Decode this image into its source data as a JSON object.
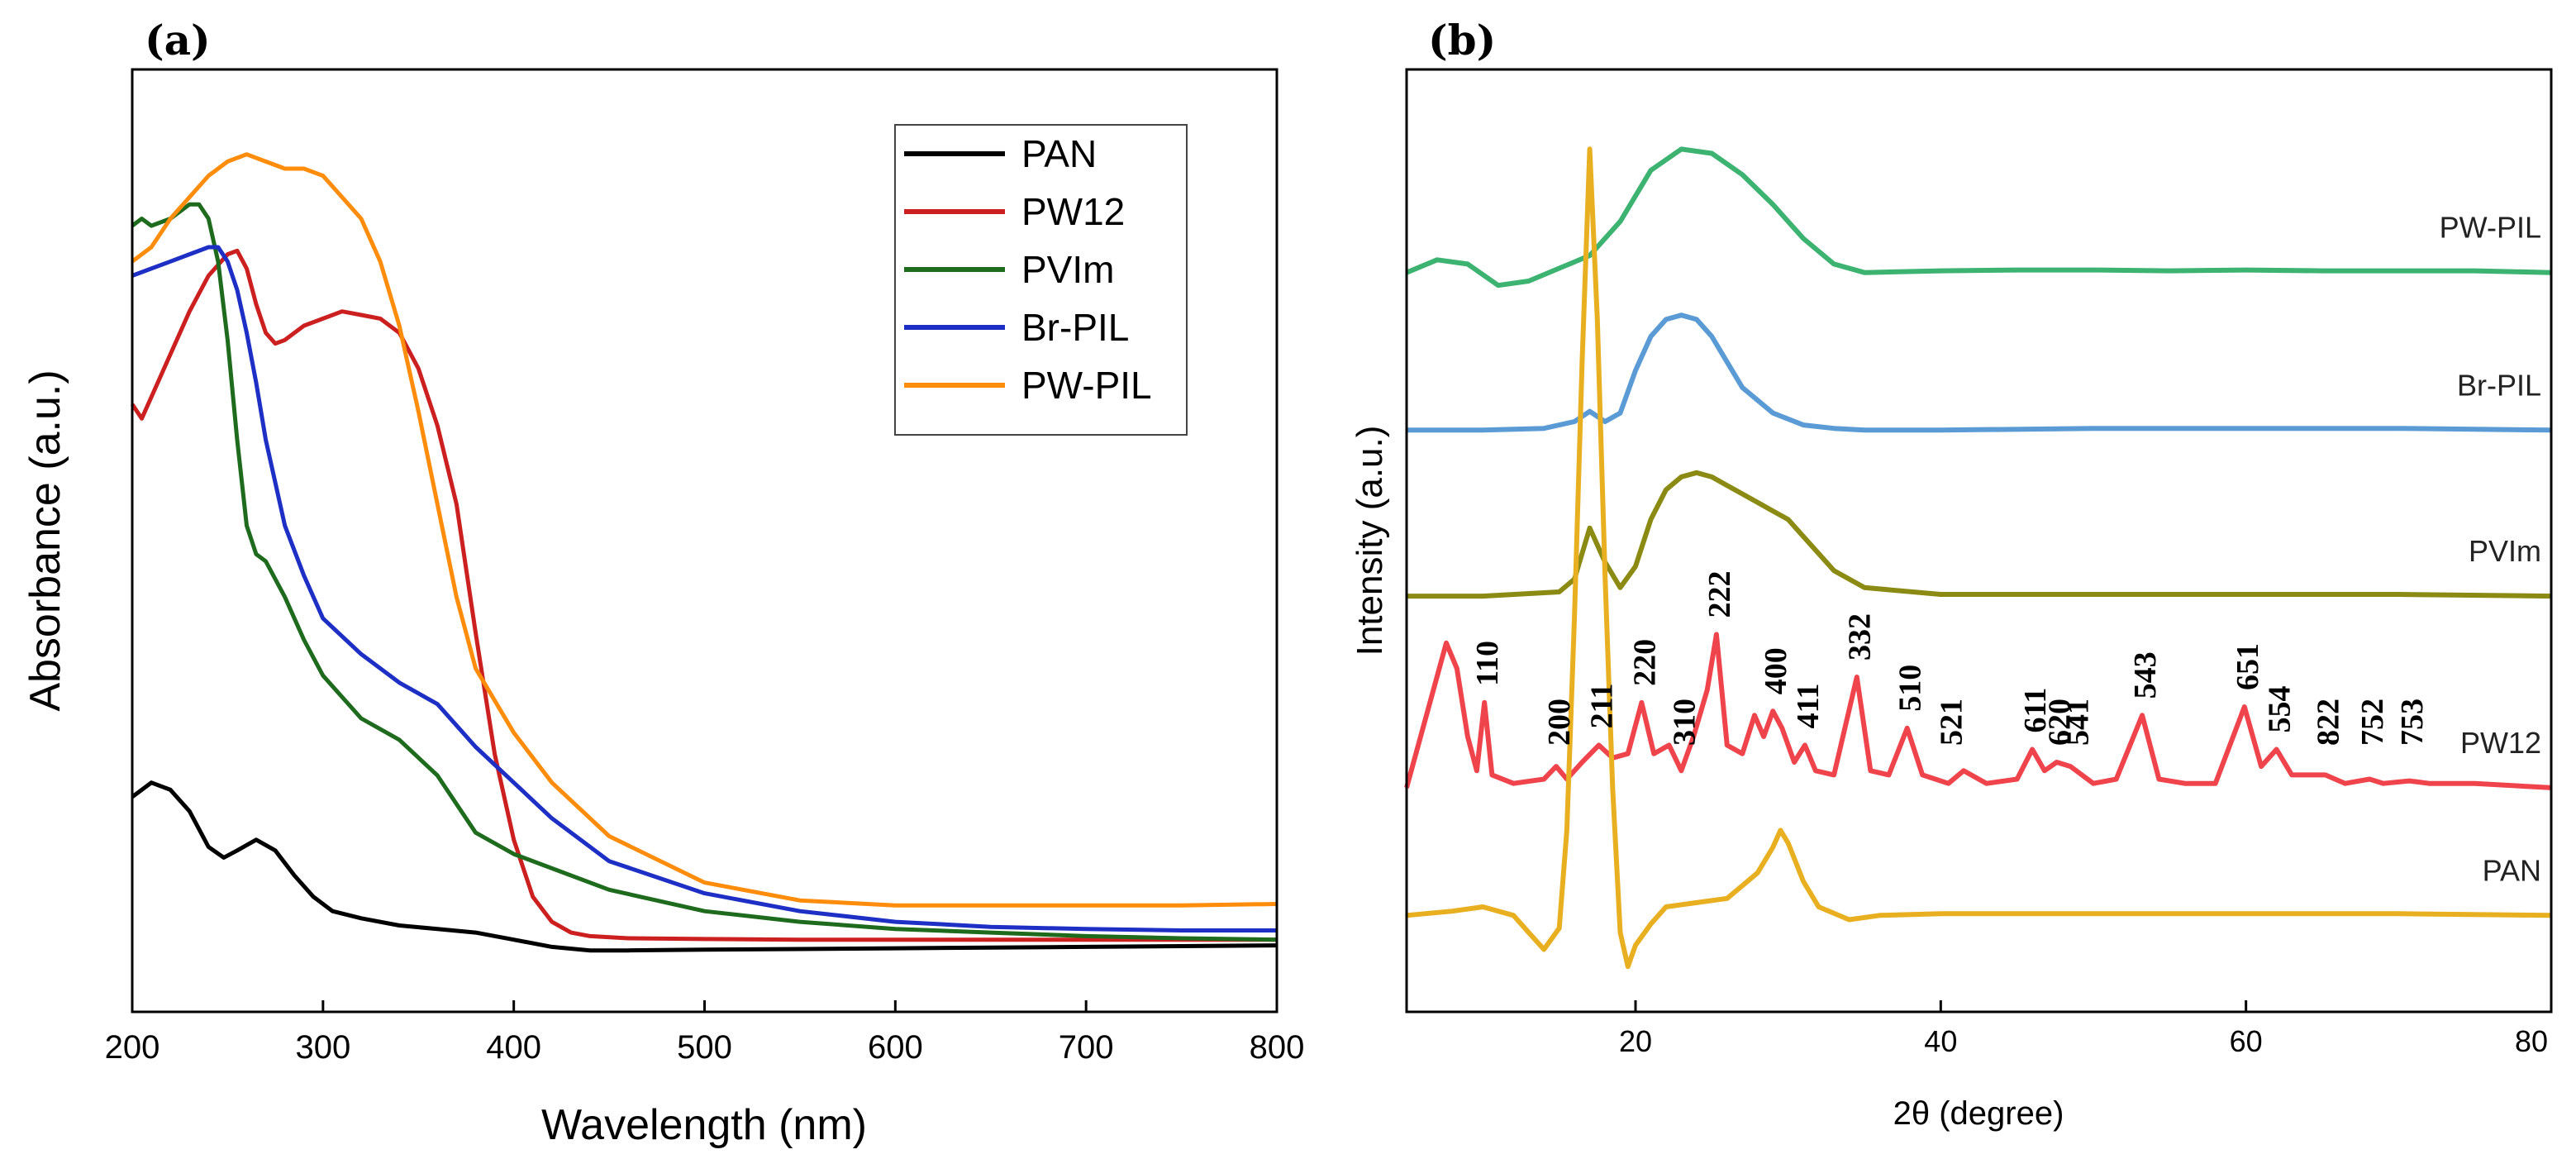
{
  "chart_data": [
    {
      "type": "line",
      "panel_label": "(a)",
      "title": "",
      "xlabel": "Wavelength (nm)",
      "ylabel": "Absorbance (a.u.)",
      "xlim": [
        200,
        800
      ],
      "ylim": [
        0,
        1.1
      ],
      "x_ticks": [
        "200",
        "300",
        "400",
        "500",
        "600",
        "700",
        "800"
      ],
      "legend_position": "top-right",
      "grid": false,
      "series": [
        {
          "name": "PAN",
          "color": "#000000",
          "x": [
            200,
            210,
            220,
            230,
            240,
            248,
            255,
            265,
            275,
            285,
            295,
            305,
            320,
            340,
            360,
            380,
            400,
            420,
            440,
            460,
            500,
            550,
            600,
            650,
            700,
            750,
            800
          ],
          "y": [
            0.22,
            0.24,
            0.23,
            0.2,
            0.15,
            0.135,
            0.145,
            0.16,
            0.145,
            0.11,
            0.08,
            0.06,
            0.05,
            0.04,
            0.035,
            0.03,
            0.02,
            0.01,
            0.005,
            0.005,
            0.006,
            0.007,
            0.008,
            0.009,
            0.01,
            0.011,
            0.012
          ]
        },
        {
          "name": "PW12",
          "color": "#cc1f1f",
          "x": [
            200,
            205,
            210,
            220,
            230,
            240,
            250,
            255,
            260,
            265,
            270,
            275,
            280,
            290,
            300,
            310,
            320,
            330,
            340,
            350,
            360,
            370,
            380,
            390,
            400,
            410,
            420,
            430,
            440,
            460,
            500,
            550,
            600,
            650,
            700,
            750,
            800
          ],
          "y": [
            0.77,
            0.75,
            0.78,
            0.84,
            0.9,
            0.95,
            0.98,
            0.985,
            0.96,
            0.91,
            0.87,
            0.855,
            0.86,
            0.88,
            0.89,
            0.9,
            0.895,
            0.89,
            0.87,
            0.82,
            0.74,
            0.63,
            0.45,
            0.28,
            0.16,
            0.08,
            0.045,
            0.03,
            0.025,
            0.022,
            0.021,
            0.02,
            0.02,
            0.02,
            0.02,
            0.02,
            0.02
          ]
        },
        {
          "name": "PVIm",
          "color": "#1e6b1e",
          "x": [
            200,
            205,
            210,
            220,
            230,
            235,
            240,
            245,
            250,
            255,
            260,
            265,
            270,
            280,
            290,
            300,
            320,
            340,
            360,
            380,
            400,
            420,
            450,
            500,
            550,
            600,
            650,
            700,
            750,
            800
          ],
          "y": [
            1.02,
            1.03,
            1.02,
            1.03,
            1.05,
            1.05,
            1.03,
            0.97,
            0.86,
            0.72,
            0.6,
            0.56,
            0.55,
            0.5,
            0.44,
            0.39,
            0.33,
            0.3,
            0.25,
            0.17,
            0.14,
            0.12,
            0.09,
            0.06,
            0.045,
            0.035,
            0.03,
            0.025,
            0.022,
            0.02
          ]
        },
        {
          "name": "Br-PIL",
          "color": "#1d2fc4",
          "x": [
            200,
            210,
            220,
            230,
            240,
            245,
            250,
            255,
            260,
            265,
            270,
            280,
            290,
            300,
            320,
            340,
            360,
            380,
            400,
            420,
            450,
            500,
            550,
            600,
            650,
            700,
            750,
            800
          ],
          "y": [
            0.95,
            0.96,
            0.97,
            0.98,
            0.99,
            0.99,
            0.97,
            0.93,
            0.87,
            0.8,
            0.72,
            0.6,
            0.53,
            0.47,
            0.42,
            0.38,
            0.35,
            0.29,
            0.24,
            0.19,
            0.13,
            0.085,
            0.06,
            0.045,
            0.038,
            0.035,
            0.033,
            0.033
          ]
        },
        {
          "name": "PW-PIL",
          "color": "#ff8c0a",
          "x": [
            200,
            210,
            220,
            230,
            240,
            250,
            260,
            270,
            280,
            290,
            300,
            310,
            320,
            330,
            340,
            350,
            360,
            370,
            380,
            400,
            420,
            450,
            500,
            550,
            600,
            650,
            700,
            750,
            800
          ],
          "y": [
            0.97,
            0.99,
            1.03,
            1.06,
            1.09,
            1.11,
            1.12,
            1.11,
            1.1,
            1.1,
            1.09,
            1.06,
            1.03,
            0.97,
            0.88,
            0.76,
            0.63,
            0.5,
            0.4,
            0.31,
            0.24,
            0.165,
            0.1,
            0.075,
            0.068,
            0.068,
            0.068,
            0.068,
            0.07
          ]
        }
      ]
    },
    {
      "type": "line",
      "panel_label": "(b)",
      "title": "",
      "xlabel": "2θ (degree)",
      "ylabel": "Intensity (a.u.)",
      "xlim": [
        5,
        80
      ],
      "ylim": [
        0,
        10
      ],
      "x_ticks": [
        "20",
        "40",
        "60",
        "80"
      ],
      "grid": false,
      "series": [
        {
          "name": "PW-PIL",
          "color": "#3cb371",
          "offset": 8.1,
          "x": [
            5,
            7,
            9,
            11,
            13,
            15,
            17,
            19,
            21,
            23,
            25,
            27,
            29,
            31,
            33,
            35,
            40,
            45,
            50,
            55,
            60,
            65,
            70,
            75,
            80
          ],
          "y": [
            0,
            0.15,
            0.1,
            -0.15,
            -0.1,
            0.05,
            0.2,
            0.6,
            1.2,
            1.45,
            1.4,
            1.15,
            0.8,
            0.4,
            0.1,
            0.0,
            0.02,
            0.03,
            0.03,
            0.02,
            0.03,
            0.02,
            0.02,
            0.02,
            0.0
          ]
        },
        {
          "name": "Br-PIL",
          "color": "#5b9bd5",
          "offset": 6.25,
          "x": [
            5,
            10,
            14,
            16,
            17,
            18,
            19,
            20,
            21,
            22,
            23,
            24,
            25,
            26,
            27,
            29,
            31,
            33,
            35,
            40,
            50,
            60,
            70,
            80
          ],
          "y": [
            0,
            0,
            0.02,
            0.1,
            0.22,
            0.1,
            0.2,
            0.7,
            1.1,
            1.3,
            1.35,
            1.3,
            1.1,
            0.8,
            0.5,
            0.2,
            0.06,
            0.02,
            0.0,
            0.0,
            0.02,
            0.02,
            0.02,
            0.0
          ]
        },
        {
          "name": "PVIm",
          "color": "#8b8b14",
          "offset": 4.3,
          "x": [
            5,
            10,
            15,
            16,
            17,
            18,
            19,
            20,
            21,
            22,
            23,
            24,
            25,
            26,
            27,
            28,
            29,
            30,
            31,
            32,
            33,
            35,
            40,
            50,
            60,
            70,
            80
          ],
          "y": [
            0,
            0,
            0.05,
            0.2,
            0.8,
            0.4,
            0.1,
            0.35,
            0.9,
            1.25,
            1.4,
            1.45,
            1.4,
            1.3,
            1.2,
            1.1,
            1.0,
            0.9,
            0.7,
            0.5,
            0.3,
            0.1,
            0.02,
            0.02,
            0.02,
            0.02,
            0.0
          ]
        },
        {
          "name": "PW12",
          "color": "#f0444c",
          "offset": 2.05,
          "x": [
            5,
            7.6,
            8.3,
            9,
            9.6,
            10.1,
            10.6,
            12,
            14,
            14.8,
            15.5,
            16.5,
            17.6,
            18.5,
            19.5,
            20.4,
            21.2,
            22.2,
            23,
            23.8,
            24.7,
            25.3,
            26,
            27,
            27.8,
            28.4,
            29,
            29.6,
            30.4,
            31.1,
            31.8,
            33,
            34.5,
            35.4,
            36.6,
            37.8,
            38.8,
            40.5,
            41.5,
            43,
            45,
            46,
            46.8,
            47.6,
            48.5,
            50,
            51.5,
            53.2,
            54.3,
            56,
            58,
            59.9,
            61,
            62,
            63,
            65.2,
            66.5,
            68.1,
            69,
            70.7,
            72,
            75,
            80
          ],
          "y": [
            0,
            1.7,
            1.4,
            0.6,
            0.2,
            1.0,
            0.15,
            0.05,
            0.1,
            0.25,
            0.1,
            0.3,
            0.5,
            0.35,
            0.4,
            1.0,
            0.4,
            0.5,
            0.2,
            0.6,
            1.15,
            1.8,
            0.5,
            0.4,
            0.85,
            0.6,
            0.9,
            0.7,
            0.3,
            0.5,
            0.2,
            0.15,
            1.3,
            0.2,
            0.15,
            0.7,
            0.15,
            0.05,
            0.2,
            0.05,
            0.1,
            0.45,
            0.2,
            0.3,
            0.25,
            0.05,
            0.1,
            0.85,
            0.1,
            0.05,
            0.05,
            0.95,
            0.25,
            0.45,
            0.15,
            0.15,
            0.05,
            0.1,
            0.05,
            0.08,
            0.05,
            0.05,
            0.0
          ]
        },
        {
          "name": "PAN",
          "color": "#e8b020",
          "offset": 0.55,
          "x": [
            5,
            8,
            10,
            12,
            13,
            14,
            15,
            15.5,
            16,
            16.5,
            17,
            17.5,
            18,
            18.5,
            19,
            19.5,
            20,
            21,
            22,
            24,
            26,
            27,
            28,
            29,
            29.5,
            30,
            31,
            32,
            34,
            36,
            40,
            50,
            60,
            70,
            80
          ],
          "y": [
            0,
            0.05,
            0.1,
            0.0,
            -0.2,
            -0.4,
            -0.15,
            1.0,
            3.5,
            6.5,
            9.0,
            7.0,
            4.0,
            1.5,
            -0.2,
            -0.6,
            -0.35,
            -0.1,
            0.1,
            0.15,
            0.2,
            0.35,
            0.5,
            0.8,
            1.0,
            0.85,
            0.4,
            0.1,
            -0.05,
            0.0,
            0.02,
            0.02,
            0.02,
            0.02,
            0.0
          ]
        }
      ],
      "curve_labels": [
        "PW-PIL",
        "Br-PIL",
        "PVIm",
        "PW12",
        "PAN"
      ],
      "peak_annotations": [
        {
          "label": "110",
          "x": 10.1
        },
        {
          "label": "200",
          "x": 14.8
        },
        {
          "label": "211",
          "x": 17.6
        },
        {
          "label": "220",
          "x": 20.4
        },
        {
          "label": "222",
          "x": 25.3
        },
        {
          "label": "310",
          "x": 23.0
        },
        {
          "label": "400",
          "x": 29.0
        },
        {
          "label": "411",
          "x": 31.1
        },
        {
          "label": "332",
          "x": 34.5
        },
        {
          "label": "510",
          "x": 37.8
        },
        {
          "label": "521",
          "x": 40.5
        },
        {
          "label": "611",
          "x": 46.0
        },
        {
          "label": "620",
          "x": 47.6
        },
        {
          "label": "541",
          "x": 48.8
        },
        {
          "label": "543",
          "x": 53.2
        },
        {
          "label": "651",
          "x": 59.9
        },
        {
          "label": "554",
          "x": 62.0
        },
        {
          "label": "822",
          "x": 65.2
        },
        {
          "label": "752",
          "x": 68.1
        },
        {
          "label": "753",
          "x": 70.7
        }
      ]
    }
  ]
}
